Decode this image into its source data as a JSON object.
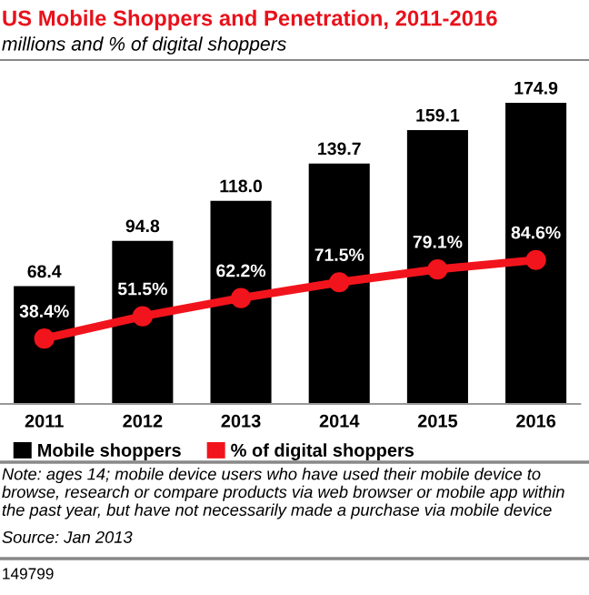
{
  "chart_data": {
    "type": "bar",
    "title": "US Mobile Shoppers and Penetration, 2011-2016",
    "subtitle": "millions and % of digital shoppers",
    "categories": [
      "2011",
      "2012",
      "2013",
      "2014",
      "2015",
      "2016"
    ],
    "series": [
      {
        "name": "Mobile shoppers",
        "color": "#000000",
        "values": [
          68.4,
          94.8,
          118.0,
          139.7,
          159.1,
          174.9
        ],
        "value_labels": [
          "68.4",
          "94.8",
          "118.0",
          "139.7",
          "159.1",
          "174.9"
        ]
      },
      {
        "name": "% of digital shoppers",
        "type": "line",
        "axis": "y2",
        "color": "#f2141c",
        "marker": "circle",
        "values": [
          38.4,
          51.5,
          62.2,
          71.5,
          79.1,
          84.6
        ],
        "value_labels": [
          "38.4%",
          "51.5%",
          "62.2%",
          "71.5%",
          "79.1%",
          "84.6%"
        ]
      }
    ],
    "legend": "bottom",
    "tick_labels": "x",
    "grid": false,
    "annotations": [
      "Note: ages 14; mobile device users who have used their mobile device to browse, research or compare products via web browser or mobile app within the past year, but have not necessarily made a purchase via mobile device",
      "Source: Jan 2013",
      "149799"
    ]
  }
}
